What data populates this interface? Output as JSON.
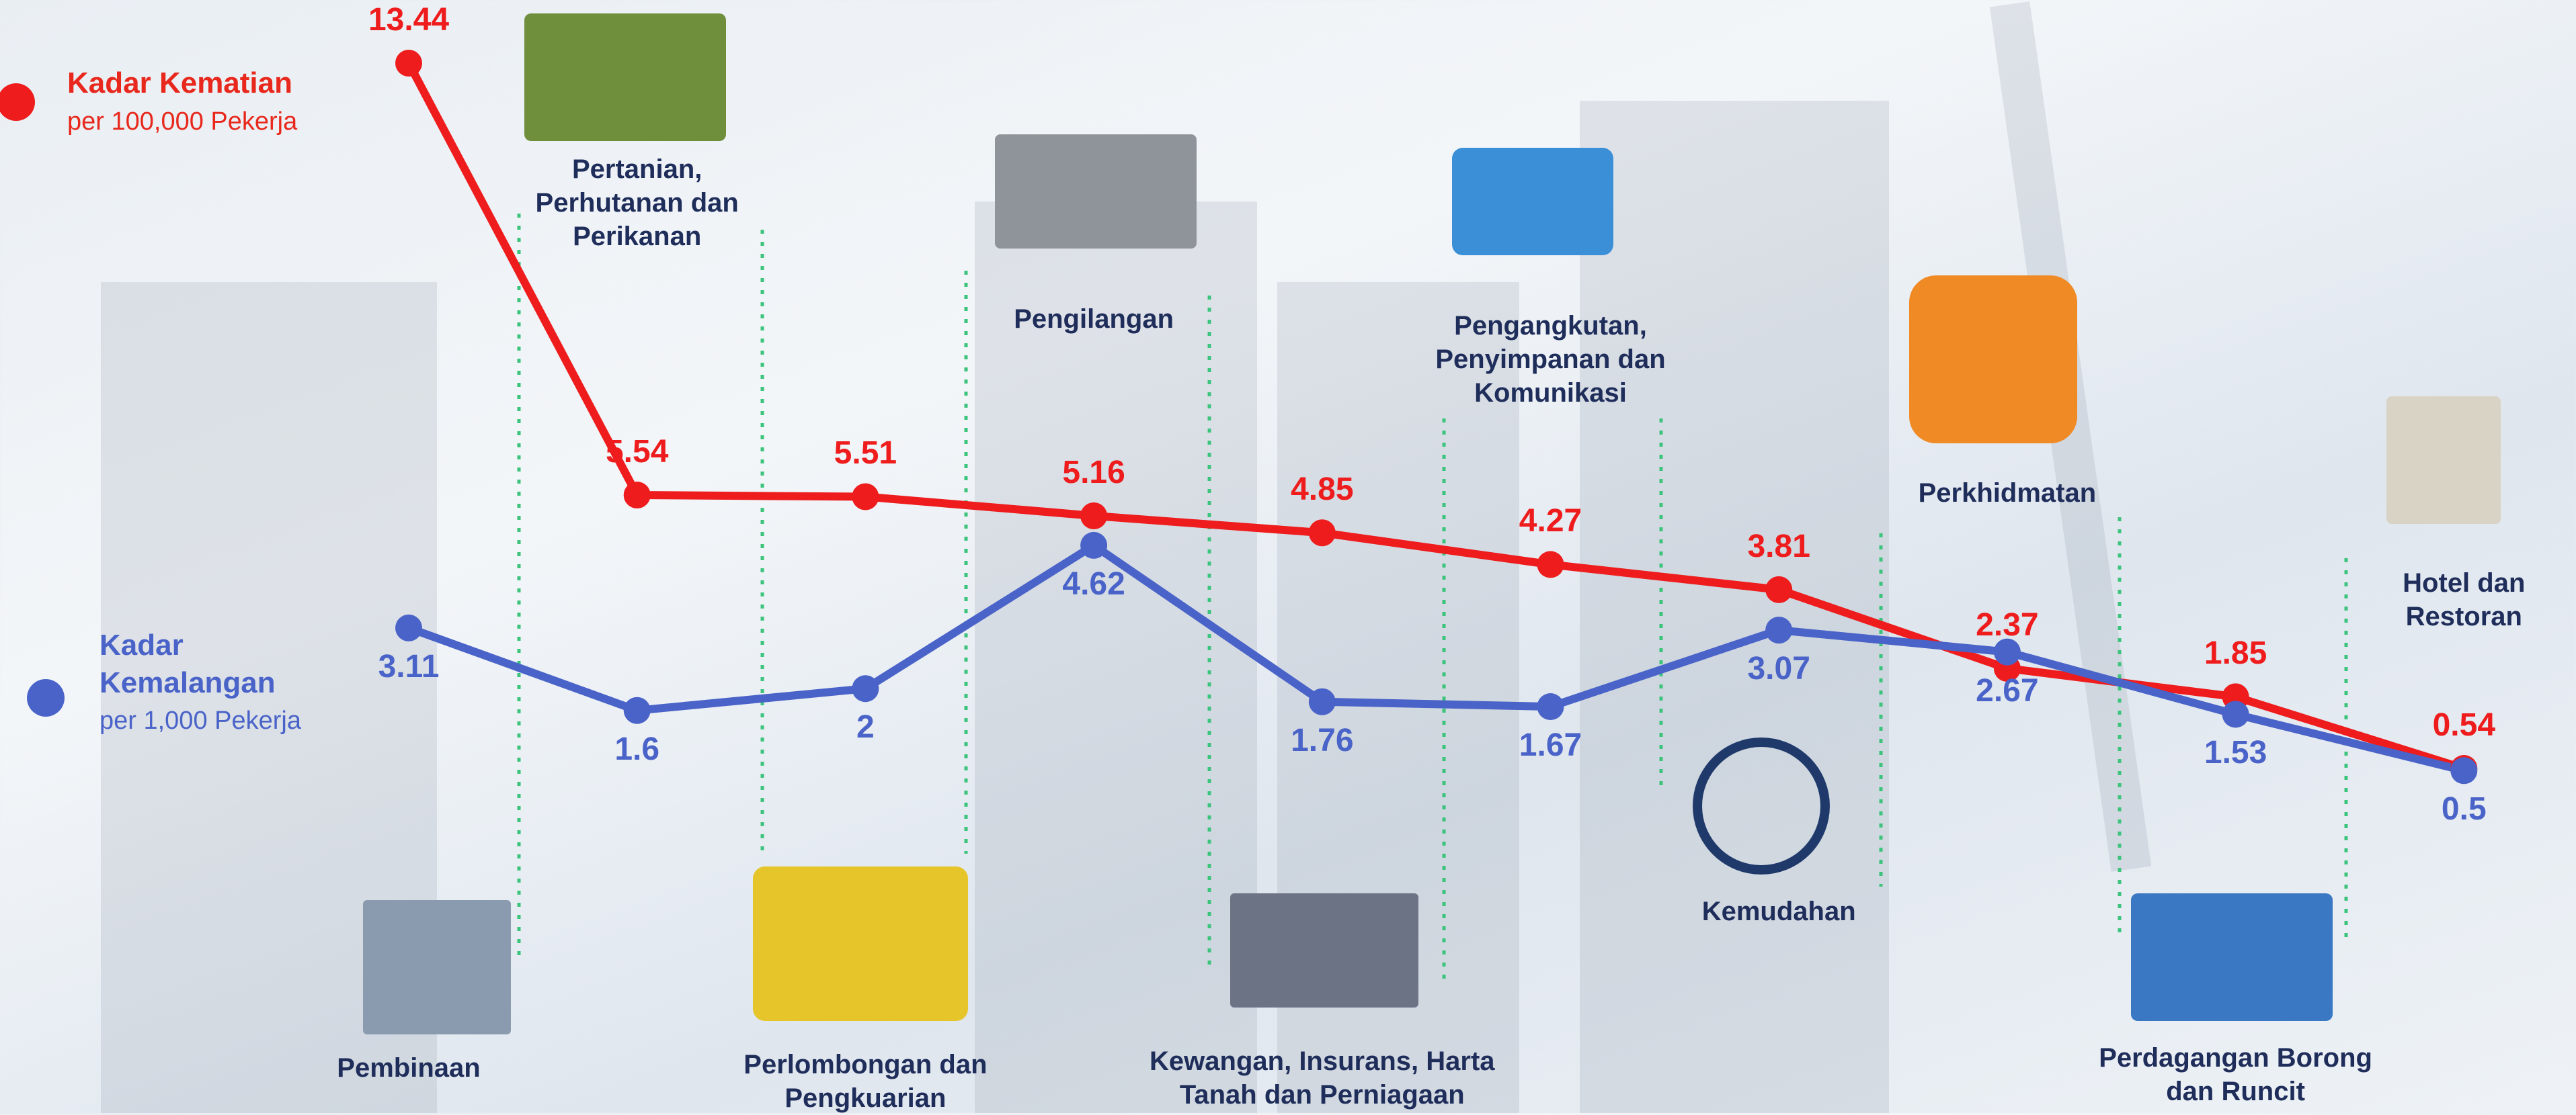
{
  "chart_data": {
    "type": "line",
    "categories": [
      "Pembinaan",
      "Pertanian, Perhutanan dan Perikanan",
      "Perlombongan dan Pengkuarian",
      "Pengilangan",
      "Kewangan, Insurans, Harta Tanah dan Perniagaan",
      "Pengangkutan, Penyimpanan dan Komunikasi",
      "Kemudahan",
      "Perkhidmatan",
      "Perdagangan Borong dan Runcit",
      "Hotel dan Restoran"
    ],
    "series": [
      {
        "name": "Kadar Kematian",
        "unit": "per 100,000 Pekerja",
        "color": "#ee1c1c",
        "values": [
          13.44,
          5.54,
          5.51,
          5.16,
          4.85,
          4.27,
          3.81,
          2.37,
          1.85,
          0.54
        ]
      },
      {
        "name": "Kadar Kemalangan",
        "unit": "per 1,000 Pekerja",
        "color": "#4a63c8",
        "values": [
          3.11,
          1.6,
          2,
          4.62,
          1.76,
          1.67,
          3.07,
          2.67,
          1.53,
          0.5
        ]
      }
    ]
  }
}
